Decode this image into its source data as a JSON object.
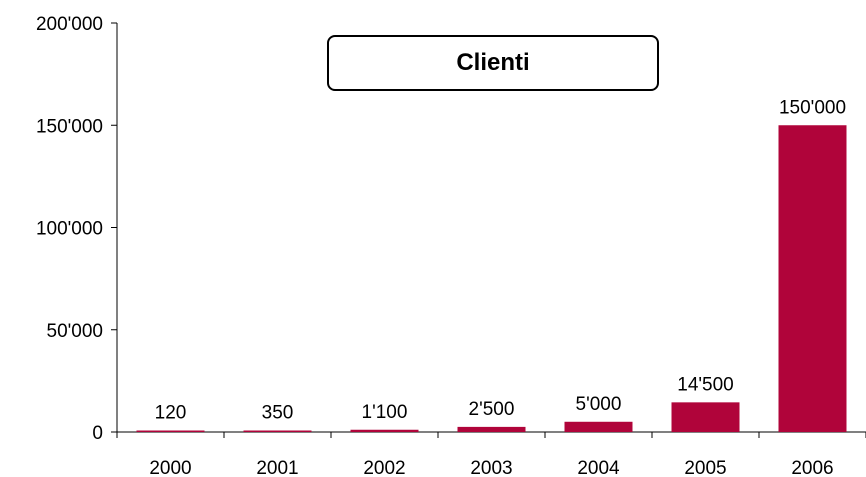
{
  "chart_data": {
    "type": "bar",
    "title": "Clienti",
    "categories": [
      "2000",
      "2001",
      "2002",
      "2003",
      "2004",
      "2005",
      "2006"
    ],
    "values": [
      120,
      350,
      1100,
      2500,
      5000,
      14500,
      150000
    ],
    "value_labels": [
      "120",
      "350",
      "1'100",
      "2'500",
      "5'000",
      "14'500",
      "150'000"
    ],
    "ylim": [
      0,
      200000
    ],
    "yticks": [
      {
        "value": 0,
        "label": "0"
      },
      {
        "value": 50000,
        "label": "50'000"
      },
      {
        "value": 100000,
        "label": "100'000"
      },
      {
        "value": 150000,
        "label": "150'000"
      },
      {
        "value": 200000,
        "label": "200'000"
      }
    ],
    "xlabel": "",
    "ylabel": "",
    "grid": false,
    "legend": "none",
    "bar_color": "#B0043A"
  }
}
